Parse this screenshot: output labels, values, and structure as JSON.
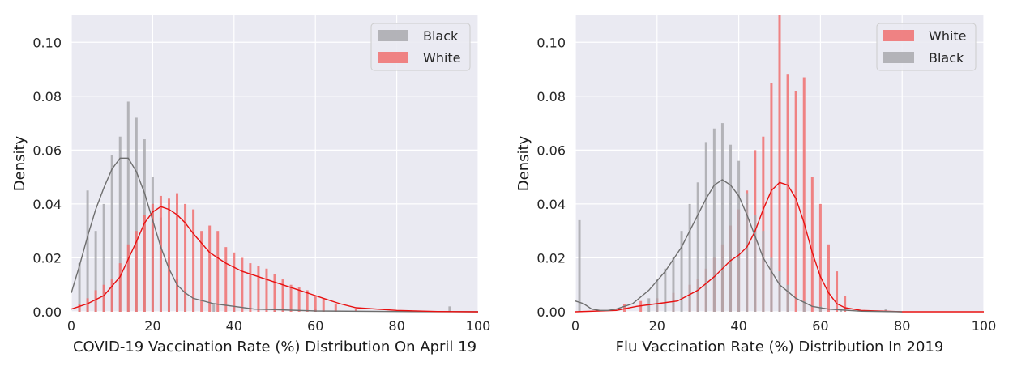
{
  "chart_data": [
    {
      "type": "histogram",
      "xlabel": "COVID-19 Vaccination Rate (%) Distribution On April 19",
      "ylabel": "Density",
      "xlim": [
        0,
        100
      ],
      "ylim": [
        0,
        0.11
      ],
      "xticks": [
        0,
        20,
        40,
        60,
        80,
        100
      ],
      "yticks": [
        0.0,
        0.02,
        0.04,
        0.06,
        0.08,
        0.1
      ],
      "ytick_labels": [
        "0.00",
        "0.02",
        "0.04",
        "0.06",
        "0.08",
        "0.10"
      ],
      "grid": true,
      "legend_position": "top-right",
      "legend": [
        "Black",
        "White"
      ],
      "series": [
        {
          "name": "Black",
          "color": "#a9a9ae",
          "kde_color": "#6e6e6e",
          "hist_x": [
            2,
            4,
            6,
            8,
            10,
            12,
            14,
            16,
            18,
            20,
            22,
            24,
            26,
            28,
            30,
            35,
            40,
            50,
            60,
            93
          ],
          "hist_y": [
            0.018,
            0.045,
            0.03,
            0.04,
            0.058,
            0.065,
            0.078,
            0.072,
            0.064,
            0.05,
            0.035,
            0.02,
            0.012,
            0.008,
            0.005,
            0.003,
            0.002,
            0.001,
            0.001,
            0.002
          ],
          "kde_x": [
            0,
            2,
            4,
            6,
            8,
            10,
            12,
            14,
            16,
            18,
            20,
            22,
            24,
            26,
            28,
            30,
            35,
            40,
            45,
            50,
            60,
            80,
            100
          ],
          "kde_y": [
            0.007,
            0.017,
            0.028,
            0.038,
            0.046,
            0.053,
            0.057,
            0.057,
            0.052,
            0.044,
            0.034,
            0.024,
            0.016,
            0.01,
            0.007,
            0.005,
            0.003,
            0.002,
            0.001,
            0.0008,
            0.0003,
            0.0001,
            0.0
          ]
        },
        {
          "name": "White",
          "color": "#f07070",
          "kde_color": "#e81010",
          "hist_x": [
            2,
            4,
            6,
            8,
            10,
            12,
            14,
            16,
            18,
            20,
            22,
            24,
            26,
            28,
            30,
            32,
            34,
            36,
            38,
            40,
            42,
            44,
            46,
            48,
            50,
            52,
            54,
            56,
            58,
            60,
            62,
            65,
            70
          ],
          "hist_y": [
            0.003,
            0.005,
            0.008,
            0.01,
            0.012,
            0.018,
            0.025,
            0.03,
            0.036,
            0.04,
            0.043,
            0.042,
            0.044,
            0.04,
            0.038,
            0.03,
            0.032,
            0.03,
            0.024,
            0.022,
            0.02,
            0.018,
            0.017,
            0.016,
            0.014,
            0.012,
            0.01,
            0.009,
            0.008,
            0.006,
            0.005,
            0.003,
            0.001
          ],
          "kde_x": [
            0,
            4,
            8,
            12,
            16,
            18,
            20,
            22,
            24,
            26,
            28,
            30,
            34,
            38,
            42,
            46,
            50,
            54,
            58,
            62,
            66,
            70,
            80,
            90,
            100
          ],
          "kde_y": [
            0.001,
            0.003,
            0.006,
            0.013,
            0.026,
            0.033,
            0.037,
            0.039,
            0.038,
            0.036,
            0.033,
            0.029,
            0.022,
            0.018,
            0.015,
            0.013,
            0.011,
            0.009,
            0.007,
            0.005,
            0.003,
            0.0015,
            0.0005,
            0.0001,
            0.0
          ]
        }
      ]
    },
    {
      "type": "histogram",
      "xlabel": "Flu Vaccination Rate (%) Distribution In 2019",
      "ylabel": "Density",
      "xlim": [
        0,
        100
      ],
      "ylim": [
        0,
        0.11
      ],
      "xticks": [
        0,
        20,
        40,
        60,
        80,
        100
      ],
      "yticks": [
        0.0,
        0.02,
        0.04,
        0.06,
        0.08,
        0.1
      ],
      "ytick_labels": [
        "0.00",
        "0.02",
        "0.04",
        "0.06",
        "0.08",
        "0.10"
      ],
      "grid": true,
      "legend_position": "top-right",
      "legend": [
        "White",
        "Black"
      ],
      "series": [
        {
          "name": "White",
          "color": "#f07070",
          "kde_color": "#e81010",
          "hist_x": [
            12,
            16,
            20,
            24,
            28,
            30,
            32,
            34,
            36,
            38,
            40,
            42,
            44,
            46,
            48,
            50,
            52,
            54,
            56,
            58,
            60,
            62,
            64,
            66
          ],
          "hist_y": [
            0.003,
            0.004,
            0.005,
            0.007,
            0.01,
            0.012,
            0.016,
            0.02,
            0.025,
            0.032,
            0.038,
            0.045,
            0.06,
            0.065,
            0.085,
            0.11,
            0.088,
            0.082,
            0.087,
            0.05,
            0.04,
            0.025,
            0.015,
            0.006
          ],
          "kde_x": [
            0,
            10,
            15,
            20,
            25,
            30,
            34,
            38,
            40,
            42,
            44,
            46,
            48,
            50,
            52,
            54,
            56,
            58,
            60,
            62,
            64,
            66,
            70,
            80,
            100
          ],
          "kde_y": [
            0.0,
            0.0005,
            0.002,
            0.003,
            0.004,
            0.008,
            0.013,
            0.019,
            0.021,
            0.024,
            0.03,
            0.038,
            0.045,
            0.048,
            0.047,
            0.042,
            0.033,
            0.022,
            0.013,
            0.007,
            0.003,
            0.0015,
            0.0005,
            0.0,
            0.0
          ]
        },
        {
          "name": "Black",
          "color": "#a9a9ae",
          "kde_color": "#6e6e6e",
          "hist_x": [
            1,
            18,
            20,
            22,
            24,
            26,
            28,
            30,
            32,
            34,
            36,
            38,
            40,
            42,
            44,
            46,
            48,
            50,
            52,
            56,
            60,
            65,
            76
          ],
          "hist_y": [
            0.034,
            0.005,
            0.012,
            0.016,
            0.02,
            0.03,
            0.04,
            0.048,
            0.063,
            0.068,
            0.07,
            0.062,
            0.056,
            0.044,
            0.036,
            0.03,
            0.02,
            0.015,
            0.01,
            0.004,
            0.002,
            0.001,
            0.001
          ],
          "kde_x": [
            0,
            2,
            4,
            6,
            8,
            10,
            14,
            18,
            22,
            26,
            30,
            32,
            34,
            36,
            38,
            40,
            42,
            44,
            46,
            50,
            54,
            58,
            62,
            70,
            80
          ],
          "kde_y": [
            0.004,
            0.003,
            0.001,
            0.0005,
            0.0005,
            0.001,
            0.003,
            0.008,
            0.015,
            0.024,
            0.036,
            0.042,
            0.047,
            0.049,
            0.047,
            0.043,
            0.036,
            0.028,
            0.02,
            0.01,
            0.005,
            0.002,
            0.001,
            0.0002,
            0.0
          ]
        }
      ]
    }
  ]
}
